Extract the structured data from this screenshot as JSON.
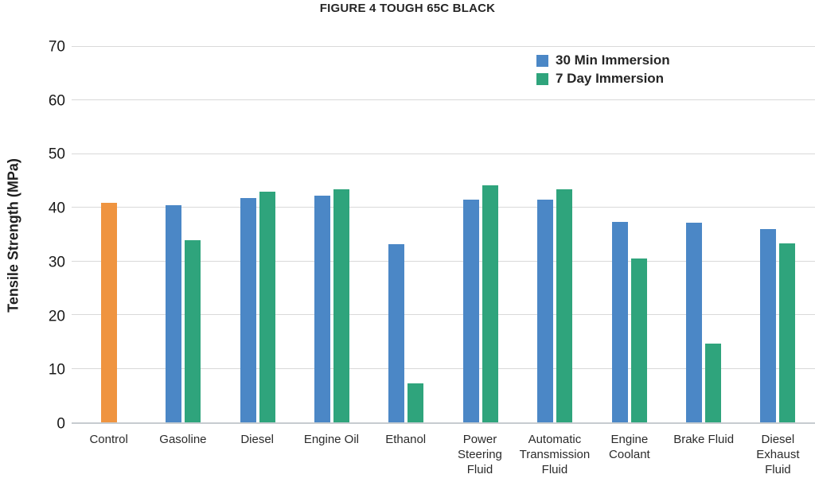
{
  "chart_data": {
    "type": "bar",
    "title": "FIGURE 4 TOUGH 65C BLACK",
    "xlabel": "",
    "ylabel": "Tensile Strength (MPa)",
    "ylim": [
      0,
      70
    ],
    "yticks": [
      0,
      10,
      20,
      30,
      40,
      50,
      60,
      70
    ],
    "grid": true,
    "grid_color": "#d9d9d9",
    "legend_position": "top-right-inside",
    "categories": [
      "Control",
      "Gasoline",
      "Diesel",
      "Engine Oil",
      "Ethanol",
      "Power Steering Fluid",
      "Automatic Transmission Fluid",
      "Engine Coolant",
      "Brake Fluid",
      "Diesel Exhaust Fluid"
    ],
    "series": [
      {
        "name": "Control",
        "color": "#ef9440",
        "in_legend": false,
        "values": [
          41,
          null,
          null,
          null,
          null,
          null,
          null,
          null,
          null,
          null
        ]
      },
      {
        "name": "30 Min Immersion",
        "color": "#4b87c6",
        "in_legend": true,
        "values": [
          null,
          40.5,
          41.8,
          42.3,
          33.2,
          41.5,
          41.5,
          37.4,
          37.2,
          36.1
        ]
      },
      {
        "name": "7 Day Immersion",
        "color": "#2fa47c",
        "in_legend": true,
        "values": [
          null,
          34,
          43,
          43.5,
          7.3,
          44.2,
          43.5,
          30.5,
          14.7,
          33.3
        ]
      }
    ]
  }
}
